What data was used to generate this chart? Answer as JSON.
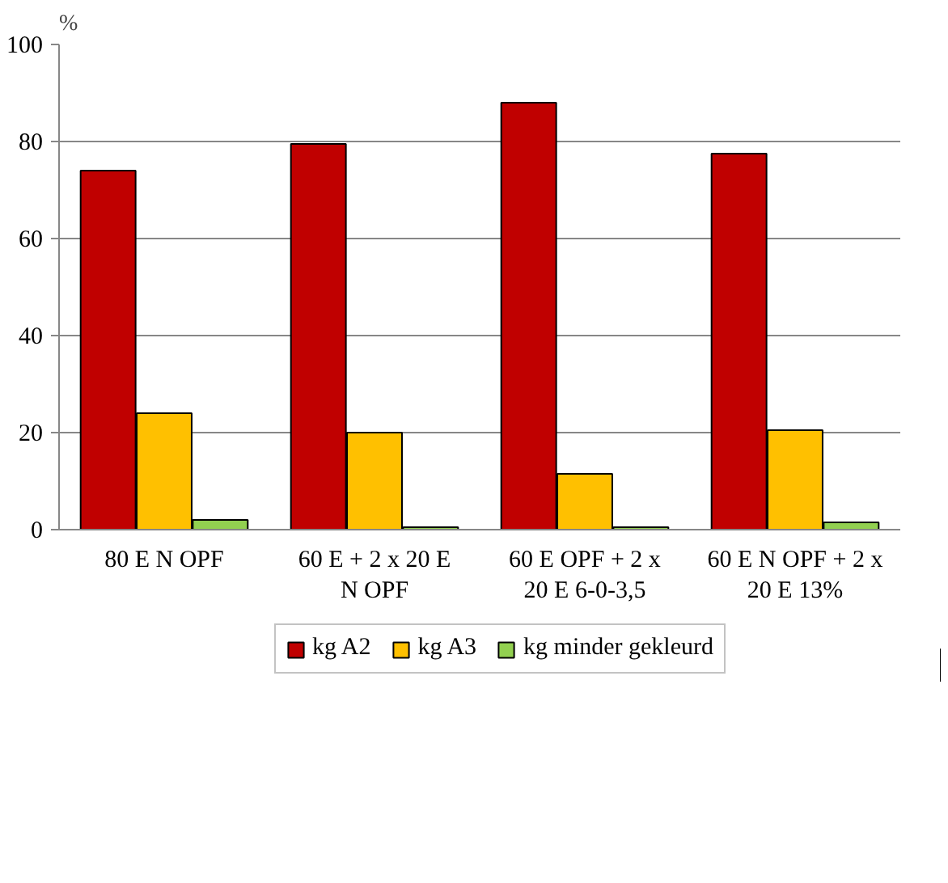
{
  "chart_data": {
    "type": "bar",
    "ylabel": "%",
    "categories": [
      "80 E N OPF",
      "60 E + 2 x 20 E N OPF",
      "60 E OPF + 2 x 20 E 6-0-3,5",
      "60 E N OPF + 2 x 20 E 13%"
    ],
    "series": [
      {
        "name": "kg A2",
        "color": "#c00000",
        "values": [
          74,
          79.5,
          88,
          77.5
        ]
      },
      {
        "name": "kg A3",
        "color": "#ffc000",
        "values": [
          24,
          20,
          11.5,
          20.5
        ]
      },
      {
        "name": "kg minder gekleurd",
        "color": "#92d050",
        "values": [
          2,
          0.5,
          0.5,
          1.5
        ]
      }
    ],
    "ylim": [
      0,
      100
    ],
    "yticks": [
      0,
      20,
      40,
      60,
      80,
      100
    ],
    "grid": "y",
    "legend": "bottom"
  }
}
